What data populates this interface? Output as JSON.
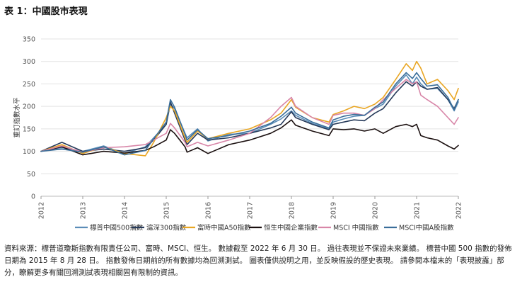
{
  "figure": {
    "title": "表 1：中國股市表現",
    "footnote": "資料來源：標普道瓊斯指數有限責任公司、富時、MSCI、恒生。 數據截至 2022 年 6 月 30 日。 過往表現並不保證未來業績。 標普中國 500 指數的發佈日期為 2015 年 8 月 28 日。 指數發佈日期前的所有數據均為回溯測試。 圖表僅供說明之用，並反映假設的歷史表現。 請參閱本檔末的「表現披露」部分，瞭解更多有關回溯測試表現相關固有限制的資訊。"
  },
  "chart_data": {
    "type": "line",
    "title": "",
    "xlabel": "",
    "ylabel": "重訂指數水平",
    "xlim": [
      2012,
      2022
    ],
    "ylim": [
      0,
      350
    ],
    "y_ticks": [
      0,
      50,
      100,
      150,
      200,
      250,
      300,
      350
    ],
    "x_ticks": [
      "2012",
      "2013",
      "2014",
      "2015",
      "2016",
      "2017",
      "2018",
      "2019",
      "2020",
      "2021",
      "2022"
    ],
    "grid": "horizontal",
    "legend_position": "bottom",
    "series": [
      {
        "name": "標普中國500指數",
        "color": "#5B8DB8",
        "x": [
          2012.0,
          2012.5,
          2013.0,
          2013.5,
          2014.0,
          2014.5,
          2014.7,
          2015.0,
          2015.1,
          2015.2,
          2015.45,
          2015.5,
          2015.75,
          2016.0,
          2016.5,
          2017.0,
          2017.5,
          2017.75,
          2018.0,
          2018.1,
          2018.5,
          2018.9,
          2019.0,
          2019.25,
          2019.5,
          2019.75,
          2020.0,
          2020.2,
          2020.5,
          2020.75,
          2020.9,
          2021.0,
          2021.1,
          2021.25,
          2021.5,
          2021.75,
          2021.9,
          2022.0
        ],
        "y": [
          100,
          108,
          100,
          112,
          95,
          110,
          130,
          160,
          205,
          195,
          140,
          130,
          150,
          123,
          138,
          140,
          160,
          172,
          190,
          180,
          162,
          150,
          165,
          172,
          178,
          180,
          195,
          205,
          245,
          270,
          250,
          265,
          250,
          238,
          240,
          215,
          190,
          210
        ]
      },
      {
        "name": "滬深300指數",
        "color": "#263A5A",
        "x": [
          2012.0,
          2012.5,
          2013.0,
          2013.5,
          2014.0,
          2014.5,
          2014.7,
          2015.0,
          2015.1,
          2015.2,
          2015.45,
          2015.5,
          2015.75,
          2016.0,
          2016.5,
          2017.0,
          2017.5,
          2017.75,
          2018.0,
          2018.1,
          2018.5,
          2018.9,
          2019.0,
          2019.25,
          2019.5,
          2019.75,
          2020.0,
          2020.2,
          2020.5,
          2020.75,
          2020.9,
          2021.0,
          2021.1,
          2021.25,
          2021.5,
          2021.75,
          2021.9,
          2022.0
        ],
        "y": [
          100,
          120,
          100,
          105,
          100,
          108,
          125,
          160,
          210,
          185,
          125,
          115,
          140,
          125,
          130,
          140,
          152,
          160,
          188,
          175,
          160,
          148,
          160,
          165,
          170,
          168,
          185,
          195,
          230,
          255,
          245,
          255,
          245,
          238,
          242,
          215,
          195,
          215
        ]
      },
      {
        "name": "富時中國A50指數",
        "color": "#E9A623",
        "x": [
          2012.0,
          2012.5,
          2013.0,
          2013.5,
          2014.0,
          2014.5,
          2014.7,
          2015.0,
          2015.1,
          2015.2,
          2015.45,
          2015.5,
          2015.75,
          2016.0,
          2016.5,
          2017.0,
          2017.5,
          2017.75,
          2018.0,
          2018.1,
          2018.5,
          2018.9,
          2019.0,
          2019.25,
          2019.5,
          2019.75,
          2020.0,
          2020.2,
          2020.5,
          2020.75,
          2020.9,
          2021.0,
          2021.1,
          2021.25,
          2021.5,
          2021.75,
          2021.9,
          2022.0
        ],
        "y": [
          100,
          115,
          95,
          110,
          95,
          90,
          120,
          175,
          200,
          190,
          130,
          120,
          145,
          128,
          140,
          150,
          170,
          185,
          215,
          198,
          175,
          165,
          182,
          190,
          200,
          195,
          205,
          220,
          260,
          295,
          280,
          300,
          285,
          250,
          260,
          235,
          215,
          240
        ]
      },
      {
        "name": "恒生中國企業指數",
        "color": "#1A0F0F",
        "x": [
          2012.0,
          2012.5,
          2013.0,
          2013.5,
          2014.0,
          2014.5,
          2014.7,
          2015.0,
          2015.1,
          2015.2,
          2015.45,
          2015.5,
          2015.75,
          2016.0,
          2016.5,
          2017.0,
          2017.5,
          2017.75,
          2018.0,
          2018.1,
          2018.5,
          2018.9,
          2019.0,
          2019.25,
          2019.5,
          2019.75,
          2020.0,
          2020.2,
          2020.5,
          2020.75,
          2020.9,
          2021.0,
          2021.1,
          2021.25,
          2021.5,
          2021.75,
          2021.9,
          2022.0
        ],
        "y": [
          100,
          110,
          92,
          100,
          96,
          102,
          110,
          125,
          148,
          140,
          110,
          98,
          108,
          95,
          115,
          125,
          140,
          152,
          170,
          158,
          145,
          135,
          150,
          148,
          150,
          145,
          150,
          140,
          155,
          160,
          155,
          160,
          135,
          130,
          125,
          112,
          105,
          113
        ]
      },
      {
        "name": "MSCI 中國指數",
        "color": "#D886A8",
        "x": [
          2012.0,
          2012.5,
          2013.0,
          2013.5,
          2014.0,
          2014.5,
          2014.7,
          2015.0,
          2015.1,
          2015.2,
          2015.45,
          2015.5,
          2015.75,
          2016.0,
          2016.5,
          2017.0,
          2017.5,
          2017.75,
          2018.0,
          2018.1,
          2018.5,
          2018.9,
          2019.0,
          2019.25,
          2019.5,
          2019.75,
          2020.0,
          2020.2,
          2020.5,
          2020.75,
          2020.9,
          2021.0,
          2021.1,
          2021.25,
          2021.5,
          2021.75,
          2021.9,
          2022.0
        ],
        "y": [
          100,
          112,
          98,
          108,
          110,
          115,
          125,
          140,
          162,
          152,
          120,
          110,
          120,
          112,
          125,
          140,
          175,
          200,
          220,
          200,
          175,
          160,
          180,
          185,
          185,
          180,
          195,
          215,
          240,
          260,
          250,
          255,
          225,
          215,
          200,
          175,
          160,
          175
        ]
      },
      {
        "name": "MSCI中國A股指數",
        "color": "#3A6E9A",
        "x": [
          2012.0,
          2012.5,
          2013.0,
          2013.5,
          2014.0,
          2014.5,
          2014.7,
          2015.0,
          2015.1,
          2015.2,
          2015.45,
          2015.5,
          2015.75,
          2016.0,
          2016.5,
          2017.0,
          2017.5,
          2017.75,
          2018.0,
          2018.1,
          2018.5,
          2018.9,
          2019.0,
          2019.25,
          2019.5,
          2019.75,
          2020.0,
          2020.2,
          2020.5,
          2020.75,
          2020.9,
          2021.0,
          2021.1,
          2021.25,
          2021.5,
          2021.75,
          2021.9,
          2022.0
        ],
        "y": [
          100,
          105,
          98,
          110,
          92,
          102,
          128,
          165,
          215,
          198,
          138,
          125,
          148,
          128,
          135,
          145,
          162,
          178,
          198,
          185,
          165,
          152,
          170,
          178,
          182,
          180,
          198,
          210,
          250,
          275,
          262,
          275,
          262,
          245,
          248,
          220,
          192,
          215
        ]
      }
    ]
  }
}
